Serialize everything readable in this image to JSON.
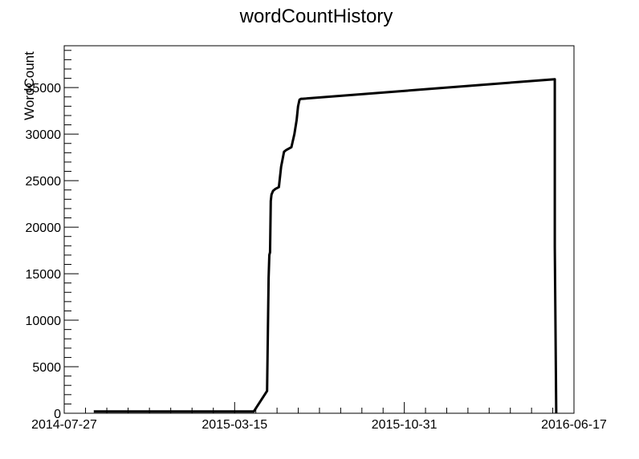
{
  "chart_data": {
    "type": "line",
    "title": "wordCountHistory",
    "xlabel": "",
    "ylabel": "WordCount",
    "x_axis_type": "date",
    "xlim": [
      "2014-07-27",
      "2016-06-17"
    ],
    "ylim": [
      0,
      39500
    ],
    "x_ticks": [
      "2014-07-27",
      "2015-03-15",
      "2015-10-31",
      "2016-06-17"
    ],
    "y_ticks": [
      0,
      5000,
      10000,
      15000,
      20000,
      25000,
      30000,
      35000
    ],
    "grid": false,
    "legend": "none",
    "line_color": "#000000",
    "series": [
      {
        "x": [
          "2014-09-05",
          "2015-04-10",
          "2015-04-28",
          "2015-04-30",
          "2015-05-01",
          "2015-05-02",
          "2015-05-03",
          "2015-05-04",
          "2015-05-06",
          "2015-05-09",
          "2015-05-14",
          "2015-05-17",
          "2015-05-19",
          "2015-05-21",
          "2015-05-24",
          "2015-05-31",
          "2015-06-04",
          "2015-06-07",
          "2015-06-09",
          "2015-06-11",
          "2015-06-13",
          "2015-06-15",
          "2016-05-22",
          "2016-05-22",
          "2016-05-24"
        ],
        "y": [
          200,
          200,
          2400,
          14500,
          17000,
          17300,
          22800,
          23500,
          23900,
          24100,
          24300,
          26500,
          27300,
          28100,
          28300,
          28600,
          30000,
          31500,
          33000,
          33700,
          33800,
          33800,
          35900,
          17900,
          0
        ]
      }
    ]
  }
}
